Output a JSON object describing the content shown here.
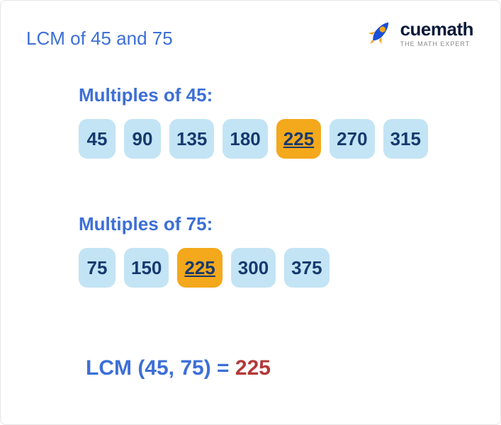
{
  "title": "LCM of 45 and 75",
  "brand": {
    "name": "cuemath",
    "tagline": "THE MATH EXPERT",
    "rocket_body": "#1a4fd6",
    "rocket_fin": "#f4a81c",
    "rocket_window": "#f4a81c"
  },
  "sections": {
    "first": {
      "heading": "Multiples of 45:",
      "chips": [
        {
          "label": "45",
          "hl": false
        },
        {
          "label": "90",
          "hl": false
        },
        {
          "label": "135",
          "hl": false
        },
        {
          "label": "180",
          "hl": false
        },
        {
          "label": "225",
          "hl": true
        },
        {
          "label": "270",
          "hl": false
        },
        {
          "label": "315",
          "hl": false
        }
      ]
    },
    "second": {
      "heading": "Multiples of 75:",
      "chips": [
        {
          "label": "75",
          "hl": false
        },
        {
          "label": "150",
          "hl": false
        },
        {
          "label": "225",
          "hl": true
        },
        {
          "label": "300",
          "hl": false
        },
        {
          "label": "375",
          "hl": false
        }
      ]
    }
  },
  "result": {
    "label": "LCM (45, 75)",
    "eq": " = ",
    "value": "225"
  },
  "style": {
    "chip_normal_bg": "#c3e4f5",
    "chip_normal_fg": "#163a6e",
    "chip_hl_bg": "#f4a81c",
    "chip_hl_fg": "#163a6e",
    "heading_color": "#3d6fd6",
    "result_value_color": "#b23a3a",
    "chip_radius": 12,
    "chip_height": 56,
    "chip_fontsize": 26,
    "heading_fontsize": 26,
    "title_fontsize": 26,
    "result_fontsize": 30,
    "background": "#ffffff"
  }
}
